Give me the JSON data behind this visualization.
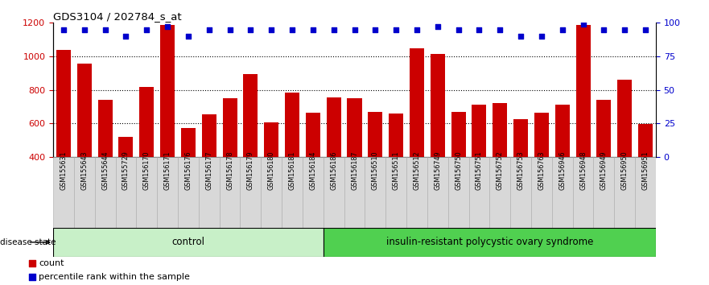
{
  "title": "GDS3104 / 202784_s_at",
  "samples": [
    "GSM155631",
    "GSM155643",
    "GSM155644",
    "GSM155729",
    "GSM156170",
    "GSM156171",
    "GSM156176",
    "GSM156177",
    "GSM156178",
    "GSM156179",
    "GSM156180",
    "GSM156181",
    "GSM156184",
    "GSM156186",
    "GSM156187",
    "GSM156510",
    "GSM156511",
    "GSM156512",
    "GSM156749",
    "GSM156750",
    "GSM156751",
    "GSM156752",
    "GSM156753",
    "GSM156763",
    "GSM156946",
    "GSM156948",
    "GSM156949",
    "GSM156950",
    "GSM156951"
  ],
  "counts": [
    1040,
    955,
    740,
    520,
    815,
    1185,
    570,
    655,
    750,
    895,
    605,
    785,
    665,
    755,
    750,
    670,
    660,
    1050,
    1015,
    670,
    710,
    720,
    625,
    665,
    710,
    1185,
    740,
    860,
    595
  ],
  "percentile_ranks": [
    95,
    95,
    95,
    90,
    95,
    97,
    90,
    95,
    95,
    95,
    95,
    95,
    95,
    95,
    95,
    95,
    95,
    95,
    97,
    95,
    95,
    95,
    90,
    90,
    95,
    99,
    95,
    95,
    95
  ],
  "group_labels": [
    "control",
    "insulin-resistant polycystic ovary syndrome"
  ],
  "group_sizes": [
    13,
    16
  ],
  "bar_color": "#CC0000",
  "percentile_color": "#0000CC",
  "ylim_left": [
    400,
    1200
  ],
  "ylim_right": [
    0,
    100
  ],
  "yticks_left": [
    400,
    600,
    800,
    1000,
    1200
  ],
  "yticks_right": [
    0,
    25,
    50,
    75,
    100
  ],
  "grid_values": [
    600,
    800,
    1000
  ],
  "legend_count_label": "count",
  "legend_pct_label": "percentile rank within the sample",
  "group1_color": "#c8f0c8",
  "group2_color": "#50d050",
  "xtick_bg": "#d8d8d8"
}
